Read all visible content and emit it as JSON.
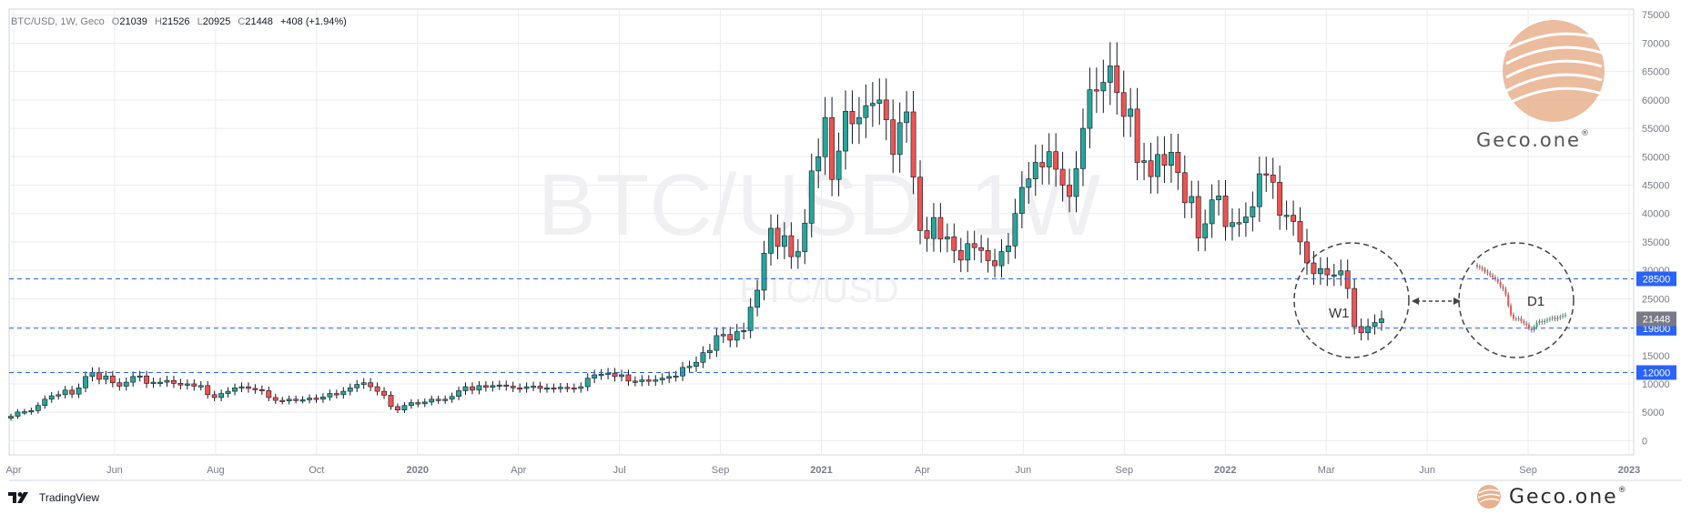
{
  "header": {
    "symbol": "BTC/USD, 1W, Geco",
    "o_label": "O",
    "o_value": "21039",
    "h_label": "H",
    "h_value": "21526",
    "l_label": "L",
    "l_value": "20925",
    "c_label": "C",
    "c_value": "21448",
    "change": "+408 (+1.94%)"
  },
  "watermark": {
    "title": "BTC/USD, 1W",
    "subtitle": "BTC/USD"
  },
  "logo": {
    "brand": "Geco.one",
    "mark": "®"
  },
  "footer": {
    "tradingview": "TradingView",
    "brand": "Geco.one",
    "mark": "®"
  },
  "colors": {
    "up": "#26a69a",
    "down": "#ef5350",
    "grid": "#e9ecf1",
    "hline": "#2962ff",
    "text": "#787b86",
    "logo": "#e9b08d"
  },
  "chart_data": {
    "type": "candlestick",
    "ylim": [
      -2500,
      76000
    ],
    "y_ticks": [
      0,
      5000,
      10000,
      15000,
      20000,
      25000,
      30000,
      35000,
      40000,
      45000,
      50000,
      55000,
      60000,
      65000,
      70000,
      75000
    ],
    "x_ticks": [
      "Apr",
      "Jun",
      "Aug",
      "Oct",
      "2020",
      "Apr",
      "Jul",
      "Sep",
      "2021",
      "Apr",
      "Jun",
      "Sep",
      "2022",
      "Mar",
      "Jun",
      "Sep",
      "2023"
    ],
    "levels": [
      {
        "value": 28500,
        "label": "28500"
      },
      {
        "value": 19800,
        "label": "19800"
      },
      {
        "value": 12000,
        "label": "12000"
      }
    ],
    "last_price": {
      "value": 21448,
      "label": "21448"
    },
    "annotations": [
      {
        "text": "W1"
      },
      {
        "text": "D1"
      }
    ],
    "weekly_close": [
      4300,
      5050,
      5100,
      5300,
      6200,
      7300,
      7900,
      8100,
      8900,
      8200,
      9300,
      11300,
      12000,
      10800,
      11400,
      10200,
      9600,
      10300,
      11300,
      11400,
      10100,
      10300,
      10300,
      10600,
      10100,
      9800,
      10000,
      9600,
      9700,
      8100,
      7600,
      8300,
      8700,
      9300,
      9500,
      9200,
      9000,
      8800,
      7600,
      7100,
      7000,
      7300,
      7200,
      7200,
      7500,
      7300,
      7700,
      8300,
      8100,
      8700,
      9300,
      9900,
      10200,
      9500,
      8700,
      8000,
      6000,
      5400,
      6200,
      6700,
      6500,
      6800,
      7300,
      7100,
      7300,
      7800,
      8800,
      9500,
      8900,
      9700,
      9400,
      9700,
      9800,
      9600,
      9300,
      9200,
      9500,
      9600,
      9200,
      9300,
      9200,
      9400,
      9300,
      9200,
      9500,
      11000,
      11600,
      11700,
      11900,
      11300,
      11600,
      10500,
      10400,
      10700,
      10500,
      10700,
      11000,
      11300,
      11400,
      12900,
      13100,
      13800,
      15500,
      15900,
      18500,
      18700,
      17700,
      19200,
      19400,
      23500,
      26500,
      33000,
      37400,
      34200,
      36100,
      32400,
      33300,
      38300,
      47500,
      50000,
      56900,
      46000,
      51000,
      58000,
      55800,
      56900,
      59000,
      59400,
      60000,
      56500,
      50400,
      56000,
      57900,
      46400,
      37000,
      35600,
      39300,
      35500,
      35900,
      33500,
      31800,
      34700,
      34000,
      33500,
      31700,
      30800,
      33300,
      34300,
      40000,
      44600,
      46100,
      49000,
      48200,
      50900,
      47800,
      45000,
      43000,
      47900,
      55000,
      61800,
      61600,
      63100,
      66000,
      61300,
      57100,
      58400,
      49000,
      49300,
      46500,
      50400,
      48500,
      50800,
      47200,
      41900,
      43000,
      35700,
      38200,
      42400,
      43100,
      37700,
      38400,
      38400,
      39400,
      41200,
      47000,
      46800,
      45500,
      39700,
      39700,
      38600,
      35000,
      31300,
      29400,
      30300,
      29200,
      29200,
      29900,
      26800,
      20100,
      19000,
      20100,
      20800,
      21448
    ],
    "d1_close": [
      31000,
      30800,
      30500,
      30000,
      29700,
      29300,
      28900,
      28500,
      28000,
      27100,
      26600,
      25500,
      23300,
      21500,
      20700,
      20600,
      20800,
      20200,
      19800,
      19500,
      18800,
      18400,
      19100,
      19900,
      20200,
      20000,
      20300,
      20500,
      20700,
      20900,
      20600,
      20900,
      21100,
      21300,
      21448
    ]
  }
}
